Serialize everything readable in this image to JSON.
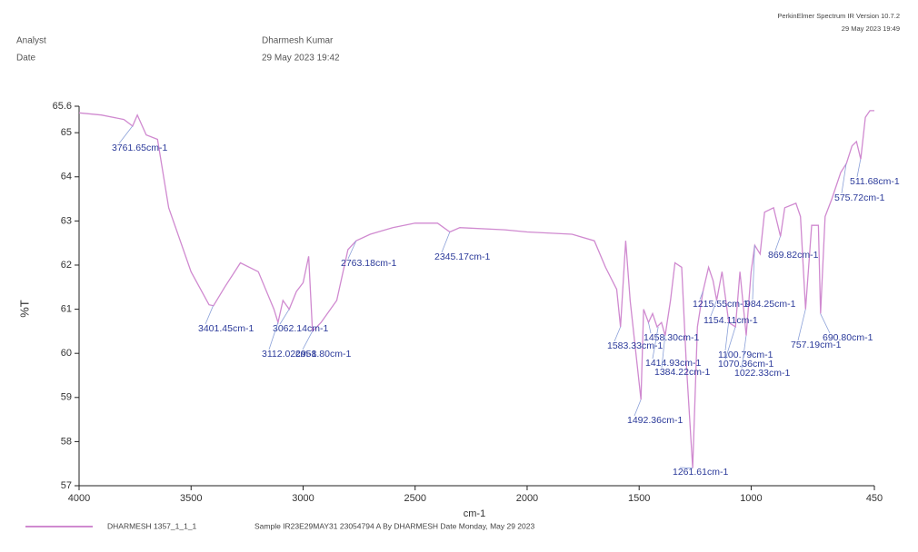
{
  "header": {
    "software": "PerkinElmer Spectrum IR Version 10.7.2",
    "timestamp": "29 May 2023 19:49",
    "analyst_label": "Analyst",
    "analyst": "Dharmesh Kumar",
    "date_label": "Date",
    "date": "29 May 2023 19:42"
  },
  "chart_data": {
    "type": "line",
    "xlabel": "cm-1",
    "ylabel": "%T",
    "x": [
      4000,
      3900,
      3800,
      3761,
      3740,
      3700,
      3650,
      3600,
      3500,
      3420,
      3400,
      3350,
      3280,
      3200,
      3130,
      3112,
      3090,
      3062,
      3030,
      3000,
      2975,
      2958,
      2920,
      2850,
      2800,
      2763,
      2700,
      2600,
      2500,
      2400,
      2345,
      2300,
      2100,
      2000,
      1800,
      1700,
      1650,
      1600,
      1583,
      1560,
      1540,
      1492,
      1480,
      1458,
      1440,
      1420,
      1400,
      1384,
      1360,
      1340,
      1310,
      1290,
      1261,
      1240,
      1215,
      1190,
      1170,
      1154,
      1130,
      1100,
      1070,
      1050,
      1022,
      1000,
      984,
      960,
      940,
      900,
      869,
      850,
      800,
      780,
      757,
      730,
      700,
      690,
      670,
      640,
      600,
      575,
      550,
      530,
      511,
      490,
      470,
      450
    ],
    "series": [
      {
        "name": "DHARMESH 1357_1_1_1",
        "color": "#d08ad0",
        "values": [
          65.45,
          65.4,
          65.3,
          65.15,
          65.4,
          64.95,
          64.85,
          63.3,
          61.85,
          61.1,
          61.08,
          61.5,
          62.05,
          61.85,
          61.0,
          60.7,
          61.2,
          61.0,
          61.4,
          61.6,
          62.2,
          60.5,
          60.7,
          61.2,
          62.35,
          62.55,
          62.7,
          62.85,
          62.95,
          62.95,
          62.75,
          62.85,
          62.8,
          62.75,
          62.7,
          62.55,
          61.95,
          61.45,
          60.6,
          62.55,
          61.2,
          58.95,
          61.0,
          60.7,
          60.9,
          60.6,
          60.7,
          60.4,
          61.2,
          62.05,
          61.95,
          59.8,
          57.4,
          60.6,
          61.4,
          61.95,
          61.65,
          61.2,
          61.85,
          60.7,
          60.6,
          61.85,
          60.4,
          61.85,
          62.45,
          62.25,
          63.2,
          63.3,
          62.65,
          63.3,
          63.4,
          63.1,
          61.0,
          62.9,
          62.9,
          60.9,
          63.1,
          63.5,
          64.1,
          64.3,
          64.7,
          64.8,
          64.4,
          65.35,
          65.5,
          65.5
        ]
      }
    ],
    "legend_note": "Sample IR23E29MAY31 23054794 A By DHARMESH Date Monday, May 29 2023",
    "xlim": [
      4000,
      450
    ],
    "xticks": [
      4000,
      3500,
      3000,
      2500,
      2000,
      1500,
      1000,
      450
    ],
    "ylim": [
      57,
      65.6
    ],
    "yticks": [
      57,
      58,
      59,
      60,
      61,
      62,
      63,
      64,
      65,
      65.6
    ],
    "annotations": [
      {
        "x": 3761.65,
        "y": 65.15,
        "label": "3761.65cm-1"
      },
      {
        "x": 3401.45,
        "y": 61.08,
        "label": "3401.45cm-1"
      },
      {
        "x": 3062.14,
        "y": 61.0,
        "label": "3062.14cm-1"
      },
      {
        "x": 3112.02,
        "y": 60.7,
        "label": "3112.02cm-1"
      },
      {
        "x": 2958.8,
        "y": 60.5,
        "label": "2958.80cm-1"
      },
      {
        "x": 2763.18,
        "y": 62.55,
        "label": "2763.18cm-1"
      },
      {
        "x": 2345.17,
        "y": 62.75,
        "label": "2345.17cm-1"
      },
      {
        "x": 1583.33,
        "y": 60.6,
        "label": "1583.33cm-1"
      },
      {
        "x": 1458.3,
        "y": 60.7,
        "label": "1458.30cm-1"
      },
      {
        "x": 1414.93,
        "y": 60.6,
        "label": "1414.93cm-1"
      },
      {
        "x": 1384.22,
        "y": 60.4,
        "label": "1384.22cm-1"
      },
      {
        "x": 1492.36,
        "y": 58.95,
        "label": "1492.36cm-1"
      },
      {
        "x": 1261.61,
        "y": 57.4,
        "label": "1261.61cm-1"
      },
      {
        "x": 1215.55,
        "y": 61.4,
        "label": "1215.55cm-1"
      },
      {
        "x": 1154.11,
        "y": 61.2,
        "label": "1154.11cm-1"
      },
      {
        "x": 1100.79,
        "y": 60.7,
        "label": "1100.79cm-1"
      },
      {
        "x": 1070.36,
        "y": 60.6,
        "label": "1070.36cm-1"
      },
      {
        "x": 1022.33,
        "y": 60.4,
        "label": "1022.33cm-1"
      },
      {
        "x": 984.25,
        "y": 62.45,
        "label": "984.25cm-1"
      },
      {
        "x": 869.82,
        "y": 62.65,
        "label": "869.82cm-1"
      },
      {
        "x": 757.19,
        "y": 61.0,
        "label": "757.19cm-1"
      },
      {
        "x": 690.8,
        "y": 60.9,
        "label": "690.80cm-1"
      },
      {
        "x": 575.72,
        "y": 64.3,
        "label": "575.72cm-1"
      },
      {
        "x": 511.68,
        "y": 64.4,
        "label": "511.68cm-1"
      }
    ]
  }
}
